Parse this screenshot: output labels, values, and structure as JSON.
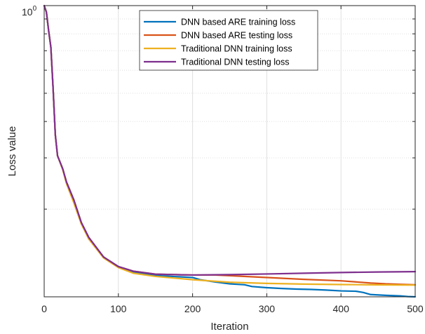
{
  "chart_data": {
    "type": "line",
    "title": "",
    "xlabel": "Iteration",
    "ylabel": "Loss value",
    "xlim": [
      0,
      500
    ],
    "ylim": [
      0.1,
      1.0
    ],
    "yscale": "log",
    "grid": true,
    "legend_position": "top-center",
    "x_ticks": [
      0,
      100,
      200,
      300,
      400,
      500
    ],
    "x_tick_labels": [
      "0",
      "100",
      "200",
      "300",
      "400",
      "500"
    ],
    "y_tick_label_base": "10",
    "y_tick_label_exp": "0",
    "series": [
      {
        "name": "DNN based ARE training loss",
        "color": "#0072BD",
        "x": [
          0,
          3,
          6,
          9,
          12,
          15,
          18,
          25,
          30,
          40,
          50,
          60,
          80,
          100,
          120,
          150,
          200,
          210,
          230,
          250,
          260,
          270,
          280,
          300,
          320,
          340,
          360,
          380,
          400,
          420,
          430,
          440,
          460,
          480,
          490,
          500
        ],
        "y": [
          1.0,
          0.95,
          0.82,
          0.72,
          0.52,
          0.36,
          0.305,
          0.275,
          0.248,
          0.215,
          0.18,
          0.16,
          0.137,
          0.127,
          0.1215,
          0.1183,
          0.1165,
          0.1145,
          0.1125,
          0.1108,
          0.1104,
          0.11,
          0.1085,
          0.1075,
          0.1068,
          0.1063,
          0.106,
          0.1055,
          0.1048,
          0.1045,
          0.1035,
          0.1018,
          0.1012,
          0.1007,
          0.1002,
          0.1
        ]
      },
      {
        "name": "DNN based ARE testing loss",
        "color": "#D95319",
        "x": [
          0,
          3,
          6,
          9,
          12,
          15,
          18,
          25,
          30,
          40,
          50,
          60,
          80,
          100,
          120,
          150,
          200,
          230,
          250,
          300,
          350,
          400,
          420,
          440,
          460,
          480,
          500
        ],
        "y": [
          1.0,
          0.95,
          0.82,
          0.72,
          0.52,
          0.36,
          0.305,
          0.275,
          0.248,
          0.215,
          0.18,
          0.16,
          0.137,
          0.127,
          0.1225,
          0.1196,
          0.1188,
          0.1188,
          0.1182,
          0.1165,
          0.1148,
          0.1135,
          0.1125,
          0.1115,
          0.1108,
          0.1104,
          0.11
        ]
      },
      {
        "name": "Traditional DNN training loss",
        "color": "#EDB120",
        "x": [
          0,
          3,
          6,
          9,
          12,
          15,
          18,
          25,
          30,
          40,
          50,
          60,
          80,
          100,
          120,
          150,
          200,
          250,
          300,
          350,
          400,
          450,
          500
        ],
        "y": [
          1.0,
          0.95,
          0.82,
          0.72,
          0.52,
          0.36,
          0.305,
          0.273,
          0.245,
          0.21,
          0.178,
          0.158,
          0.136,
          0.126,
          0.1205,
          0.1175,
          0.1145,
          0.1122,
          0.1112,
          0.1106,
          0.1102,
          0.1099,
          0.1097
        ]
      },
      {
        "name": "Traditional DNN testing loss",
        "color": "#7E2F8E",
        "x": [
          0,
          3,
          6,
          9,
          12,
          15,
          18,
          25,
          30,
          40,
          50,
          60,
          80,
          100,
          120,
          150,
          200,
          250,
          300,
          350,
          400,
          450,
          500
        ],
        "y": [
          1.0,
          0.95,
          0.82,
          0.72,
          0.52,
          0.36,
          0.305,
          0.275,
          0.248,
          0.215,
          0.18,
          0.16,
          0.137,
          0.127,
          0.1225,
          0.1196,
          0.1188,
          0.1192,
          0.1198,
          0.1205,
          0.1212,
          0.1217,
          0.122
        ]
      }
    ]
  }
}
